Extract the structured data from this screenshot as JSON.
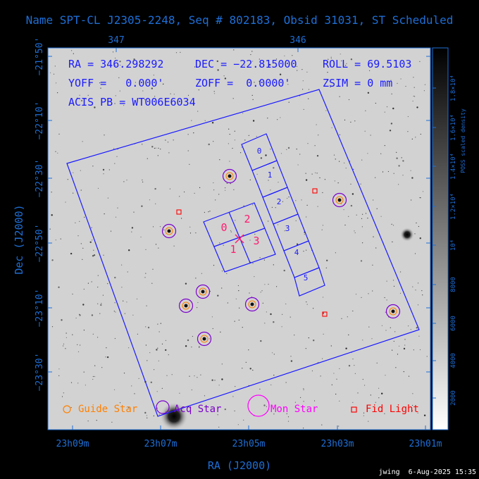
{
  "title": "Name SPT-CL J2305-2248, Seq # 802183, Obsid 31031, ST Scheduled",
  "top_ticks": [
    "347",
    "346"
  ],
  "info": {
    "ra": "RA = 346.298292",
    "dec": "DEC = −22.815000",
    "roll": "ROLL = 69.5103",
    "yoff": "YOFF =   0.000'",
    "zoff": "ZOFF =  0.0000'",
    "zsim": "ZSIM = 0 mm",
    "acis": "ACIS PB = WT006E6034"
  },
  "xlabel": "RA (J2000)",
  "ylabel": "Dec (J2000)",
  "x_ticks": [
    "23h09m",
    "23h07m",
    "23h05m",
    "23h03m",
    "23h01m"
  ],
  "y_ticks": [
    "−21°50'",
    "−22°10'",
    "−22°30'",
    "−22°50'",
    "−23°10'",
    "−23°30'"
  ],
  "colorbar": {
    "label": "POSS scaled density",
    "ticks": [
      "2000",
      "4000",
      "6000",
      "8000",
      "10⁴",
      "1.2×10⁴",
      "1.4×10⁴",
      "1.6×10⁴",
      "1.8×10⁴"
    ]
  },
  "legend": [
    {
      "label": "Guide Star",
      "color": "#ff8000",
      "icon": "small-circle"
    },
    {
      "label": "Acq Star",
      "color": "#7a00cc",
      "icon": "circle"
    },
    {
      "label": "Mon Star",
      "color": "#ff00ff",
      "icon": "big-circle"
    },
    {
      "label": "Fid Light",
      "color": "#ff0000",
      "icon": "square"
    }
  ],
  "footer": "jwing  6-Aug-2025 15:35",
  "chips": [
    "0",
    "1",
    "2",
    "3",
    "4",
    "5"
  ],
  "aimpoint": [
    "0",
    "2",
    "1",
    "3"
  ],
  "chart_data": {
    "type": "scatter",
    "xlabel": "RA (J2000)",
    "ylabel": "Dec (J2000)",
    "center_ra_deg": 346.298292,
    "center_dec_deg": -22.815,
    "roll_deg": 69.5103,
    "acq_stars_count": 8,
    "guide_stars_count": 8,
    "fid_lights_count": 3,
    "colorscale": "POSS scaled density",
    "colorscale_range": [
      1000,
      19000
    ]
  },
  "colors": {
    "frame": "#1e6fd6",
    "text": "#1a1aff",
    "acq": "#7a00cc",
    "guide": "#ff8000",
    "fid": "#ff0000",
    "aim": "#ff1a6e",
    "footer": "#ffffff"
  }
}
